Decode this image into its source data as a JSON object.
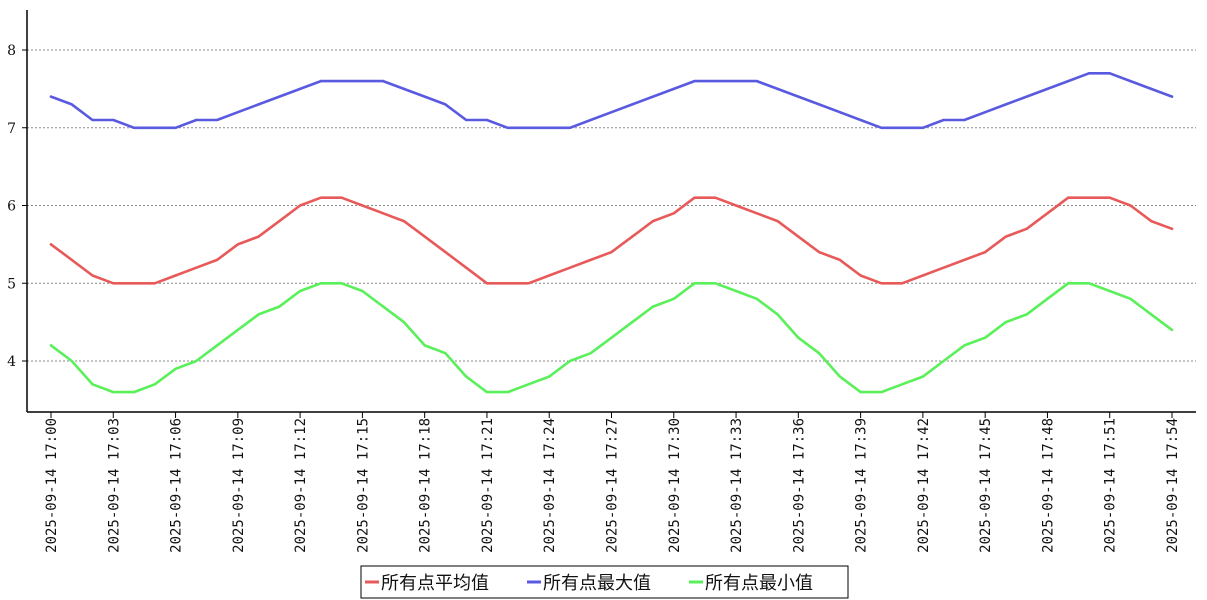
{
  "chart_data": {
    "type": "line",
    "x": [
      "2025-09-14 17:00",
      "2025-09-14 17:01",
      "2025-09-14 17:02",
      "2025-09-14 17:03",
      "2025-09-14 17:04",
      "2025-09-14 17:05",
      "2025-09-14 17:06",
      "2025-09-14 17:07",
      "2025-09-14 17:08",
      "2025-09-14 17:09",
      "2025-09-14 17:10",
      "2025-09-14 17:11",
      "2025-09-14 17:12",
      "2025-09-14 17:13",
      "2025-09-14 17:14",
      "2025-09-14 17:15",
      "2025-09-14 17:16",
      "2025-09-14 17:17",
      "2025-09-14 17:18",
      "2025-09-14 17:19",
      "2025-09-14 17:20",
      "2025-09-14 17:21",
      "2025-09-14 17:22",
      "2025-09-14 17:23",
      "2025-09-14 17:24",
      "2025-09-14 17:25",
      "2025-09-14 17:26",
      "2025-09-14 17:27",
      "2025-09-14 17:28",
      "2025-09-14 17:29",
      "2025-09-14 17:30",
      "2025-09-14 17:31",
      "2025-09-14 17:32",
      "2025-09-14 17:33",
      "2025-09-14 17:34",
      "2025-09-14 17:35",
      "2025-09-14 17:36",
      "2025-09-14 17:37",
      "2025-09-14 17:38",
      "2025-09-14 17:39",
      "2025-09-14 17:40",
      "2025-09-14 17:41",
      "2025-09-14 17:42",
      "2025-09-14 17:43",
      "2025-09-14 17:44",
      "2025-09-14 17:45",
      "2025-09-14 17:46",
      "2025-09-14 17:47",
      "2025-09-14 17:48",
      "2025-09-14 17:49",
      "2025-09-14 17:50",
      "2025-09-14 17:51",
      "2025-09-14 17:52",
      "2025-09-14 17:53",
      "2025-09-14 17:54"
    ],
    "xtick_labels": [
      "2025-09-14 17:00",
      "2025-09-14 17:03",
      "2025-09-14 17:06",
      "2025-09-14 17:09",
      "2025-09-14 17:12",
      "2025-09-14 17:15",
      "2025-09-14 17:18",
      "2025-09-14 17:21",
      "2025-09-14 17:24",
      "2025-09-14 17:27",
      "2025-09-14 17:30",
      "2025-09-14 17:33",
      "2025-09-14 17:36",
      "2025-09-14 17:39",
      "2025-09-14 17:42",
      "2025-09-14 17:45",
      "2025-09-14 17:48",
      "2025-09-14 17:51",
      "2025-09-14 17:54"
    ],
    "ytick_labels": [
      "4",
      "5",
      "6",
      "7",
      "8"
    ],
    "ylim": [
      3.45,
      8.5
    ],
    "grid": true,
    "legend_position": "bottom-center",
    "series": [
      {
        "name": "所有点平均值",
        "color": "#e85a5a",
        "values": [
          5.5,
          5.3,
          5.1,
          5.0,
          5.0,
          5.0,
          5.1,
          5.2,
          5.3,
          5.5,
          5.6,
          5.8,
          6.0,
          6.1,
          6.1,
          6.0,
          5.9,
          5.8,
          5.6,
          5.4,
          5.2,
          5.0,
          5.0,
          5.0,
          5.1,
          5.2,
          5.3,
          5.4,
          5.6,
          5.8,
          5.9,
          6.1,
          6.1,
          6.0,
          5.9,
          5.8,
          5.6,
          5.4,
          5.3,
          5.1,
          5.0,
          5.0,
          5.1,
          5.2,
          5.3,
          5.4,
          5.6,
          5.7,
          5.9,
          6.1,
          6.1,
          6.1,
          6.0,
          5.8,
          5.7
        ]
      },
      {
        "name": "所有点最大值",
        "color": "#5a5ae0",
        "values": [
          7.4,
          7.3,
          7.1,
          7.1,
          7.0,
          7.0,
          7.0,
          7.1,
          7.1,
          7.2,
          7.3,
          7.4,
          7.5,
          7.6,
          7.6,
          7.6,
          7.6,
          7.5,
          7.4,
          7.3,
          7.1,
          7.1,
          7.0,
          7.0,
          7.0,
          7.0,
          7.1,
          7.2,
          7.3,
          7.4,
          7.5,
          7.6,
          7.6,
          7.6,
          7.6,
          7.5,
          7.4,
          7.3,
          7.2,
          7.1,
          7.0,
          7.0,
          7.0,
          7.1,
          7.1,
          7.2,
          7.3,
          7.4,
          7.5,
          7.6,
          7.7,
          7.7,
          7.6,
          7.5,
          7.4
        ]
      },
      {
        "name": "所有点最小值",
        "color": "#5af05a",
        "values": [
          4.2,
          4.0,
          3.7,
          3.6,
          3.6,
          3.7,
          3.9,
          4.0,
          4.2,
          4.4,
          4.6,
          4.7,
          4.9,
          5.0,
          5.0,
          4.9,
          4.7,
          4.5,
          4.2,
          4.1,
          3.8,
          3.6,
          3.6,
          3.7,
          3.8,
          4.0,
          4.1,
          4.3,
          4.5,
          4.7,
          4.8,
          5.0,
          5.0,
          4.9,
          4.8,
          4.6,
          4.3,
          4.1,
          3.8,
          3.6,
          3.6,
          3.7,
          3.8,
          4.0,
          4.2,
          4.3,
          4.5,
          4.6,
          4.8,
          5.0,
          5.0,
          4.9,
          4.8,
          4.6,
          4.4
        ]
      }
    ]
  }
}
